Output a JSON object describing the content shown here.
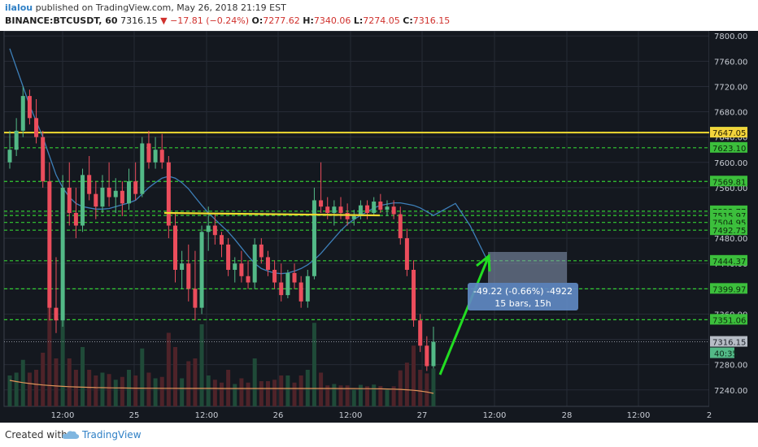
{
  "header": {
    "author": "ilalou",
    "published_text": "published on TradingView.com, May 26, 2018 21:19 EST",
    "symbol": "BINANCE:BTCUSDT, 60",
    "last": "7316.15",
    "arrow": "▼",
    "change": "−17.81 (−0.24%)",
    "o_label": "O:",
    "o_value": "7277.62",
    "h_label": "H:",
    "h_value": "7340.06",
    "l_label": "L:",
    "l_value": "7274.05",
    "c_label": "C:",
    "c_value": "7316.15"
  },
  "footer": {
    "created_with": "Created with",
    "brand": "TradingView"
  },
  "colors": {
    "background": "#14181f",
    "up": "#53b987",
    "down": "#eb4d5c",
    "ma": "#3d7fb8",
    "level": "#33cc33",
    "yellow": "#f0d830",
    "volume_ma": "#e0945a",
    "arrow": "#22dd22"
  },
  "chart_data": {
    "type": "candlestick",
    "y_axis_labels": [
      "7800.00",
      "7760.00",
      "7720.00",
      "7680.00",
      "7640.00",
      "7600.00",
      "7560.00",
      "7520.00",
      "7480.00",
      "7440.00",
      "7400.00",
      "7360.00",
      "7320.00",
      "7280.00",
      "7240.00"
    ],
    "x_axis_labels": [
      "12:00",
      "25",
      "12:00",
      "26",
      "12:00",
      "27",
      "12:00",
      "28",
      "12:00",
      "2"
    ],
    "ylim": [
      7214,
      7808
    ],
    "candles": [
      [
        7600,
        7650,
        7590,
        7620
      ],
      [
        7620,
        7670,
        7610,
        7650
      ],
      [
        7650,
        7720,
        7640,
        7705
      ],
      [
        7705,
        7715,
        7660,
        7670
      ],
      [
        7670,
        7700,
        7630,
        7640
      ],
      [
        7640,
        7650,
        7560,
        7570
      ],
      [
        7570,
        7600,
        7350,
        7370
      ],
      [
        7370,
        7450,
        7330,
        7350
      ],
      [
        7350,
        7580,
        7340,
        7560
      ],
      [
        7560,
        7600,
        7500,
        7520
      ],
      [
        7520,
        7560,
        7480,
        7500
      ],
      [
        7500,
        7590,
        7490,
        7580
      ],
      [
        7580,
        7610,
        7540,
        7550
      ],
      [
        7550,
        7570,
        7510,
        7530
      ],
      [
        7530,
        7580,
        7520,
        7560
      ],
      [
        7560,
        7600,
        7530,
        7545
      ],
      [
        7545,
        7575,
        7520,
        7555
      ],
      [
        7555,
        7570,
        7515,
        7535
      ],
      [
        7535,
        7590,
        7525,
        7570
      ],
      [
        7570,
        7600,
        7540,
        7550
      ],
      [
        7550,
        7640,
        7545,
        7630
      ],
      [
        7630,
        7650,
        7590,
        7600
      ],
      [
        7600,
        7640,
        7590,
        7620
      ],
      [
        7620,
        7645,
        7590,
        7600
      ],
      [
        7600,
        7610,
        7480,
        7500
      ],
      [
        7500,
        7520,
        7410,
        7430
      ],
      [
        7430,
        7460,
        7400,
        7440
      ],
      [
        7440,
        7470,
        7380,
        7400
      ],
      [
        7400,
        7460,
        7350,
        7370
      ],
      [
        7370,
        7500,
        7360,
        7490
      ],
      [
        7490,
        7530,
        7460,
        7500
      ],
      [
        7500,
        7520,
        7470,
        7485
      ],
      [
        7485,
        7490,
        7450,
        7470
      ],
      [
        7470,
        7480,
        7420,
        7430
      ],
      [
        7430,
        7450,
        7410,
        7440
      ],
      [
        7440,
        7460,
        7410,
        7420
      ],
      [
        7420,
        7445,
        7400,
        7410
      ],
      [
        7410,
        7480,
        7400,
        7470
      ],
      [
        7470,
        7480,
        7440,
        7450
      ],
      [
        7450,
        7460,
        7420,
        7430
      ],
      [
        7430,
        7445,
        7400,
        7410
      ],
      [
        7410,
        7440,
        7380,
        7390
      ],
      [
        7390,
        7430,
        7385,
        7425
      ],
      [
        7425,
        7440,
        7400,
        7410
      ],
      [
        7410,
        7420,
        7370,
        7380
      ],
      [
        7380,
        7430,
        7370,
        7420
      ],
      [
        7420,
        7560,
        7415,
        7540
      ],
      [
        7540,
        7600,
        7520,
        7530
      ],
      [
        7530,
        7545,
        7510,
        7520
      ],
      [
        7520,
        7540,
        7500,
        7530
      ],
      [
        7530,
        7545,
        7510,
        7520
      ],
      [
        7520,
        7535,
        7500,
        7510
      ],
      [
        7510,
        7525,
        7500,
        7515
      ],
      [
        7515,
        7540,
        7510,
        7532
      ],
      [
        7532,
        7540,
        7510,
        7520
      ],
      [
        7520,
        7545,
        7515,
        7538
      ],
      [
        7538,
        7550,
        7520,
        7525
      ],
      [
        7525,
        7540,
        7515,
        7530
      ],
      [
        7530,
        7540,
        7510,
        7518
      ],
      [
        7518,
        7530,
        7470,
        7480
      ],
      [
        7480,
        7495,
        7420,
        7430
      ],
      [
        7430,
        7445,
        7340,
        7350
      ],
      [
        7350,
        7360,
        7300,
        7310
      ],
      [
        7310,
        7325,
        7270,
        7277.62
      ],
      [
        7277.62,
        7340.06,
        7274.05,
        7316.15
      ]
    ],
    "ma": [
      7780,
      7750,
      7720,
      7690,
      7665,
      7640,
      7610,
      7580,
      7560,
      7545,
      7535,
      7530,
      7528,
      7526,
      7526,
      7527,
      7530,
      7533,
      7536,
      7540,
      7550,
      7560,
      7568,
      7575,
      7578,
      7575,
      7568,
      7558,
      7545,
      7532,
      7520,
      7510,
      7500,
      7490,
      7478,
      7465,
      7452,
      7440,
      7432,
      7428,
      7425,
      7424,
      7425,
      7428,
      7432,
      7438,
      7446,
      7456,
      7468,
      7480,
      7492,
      7502,
      7510,
      7516,
      7522,
      7528,
      7532,
      7534,
      7536,
      7536,
      7534,
      7532,
      7528,
      7522,
      7516
    ],
    "volume_ma_note": "",
    "levels": [
      {
        "price": 7647.25,
        "label": "7647.25"
      },
      {
        "price": 7623.1,
        "label": "7623.10"
      },
      {
        "price": 7569.81,
        "label": "7569.81"
      },
      {
        "price": 7522.77,
        "label": "7522.77"
      },
      {
        "price": 7515.97,
        "label": "7515.97"
      },
      {
        "price": 7504.95,
        "label": "7504.95"
      },
      {
        "price": 7492.75,
        "label": "7492.75"
      },
      {
        "price": 7444.37,
        "label": "7444.37"
      },
      {
        "price": 7399.97,
        "label": "7399.97"
      },
      {
        "price": 7351.06,
        "label": "7351.06"
      }
    ],
    "yellow_level": {
      "price": 7647.05,
      "label": "7647.05"
    },
    "current_price": {
      "price": 7316.15,
      "label": "7316.15",
      "countdown": "40:35"
    },
    "measure_box": {
      "line1": "-49.22 (-0.66%) -4922",
      "line2": "15 bars, 15h"
    }
  }
}
